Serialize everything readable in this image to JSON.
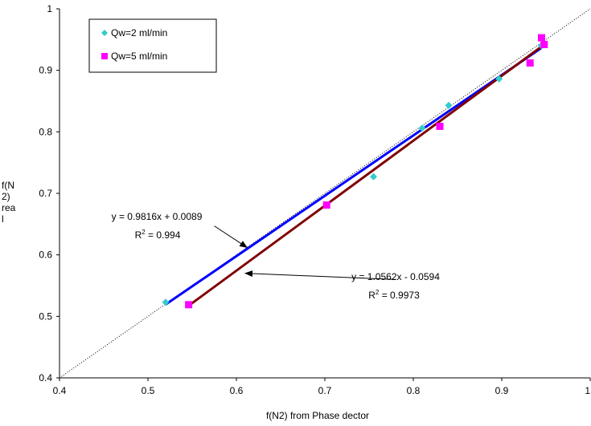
{
  "chart_data": {
    "type": "scatter",
    "xlabel": "f(N2) from Phase dector",
    "ylabel_lines": [
      "f(N",
      "2)",
      "rea",
      "l"
    ],
    "xlim": [
      0.4,
      1.0
    ],
    "ylim": [
      0.4,
      1.0
    ],
    "x_ticks": [
      0.4,
      0.5,
      0.6,
      0.7,
      0.8,
      0.9,
      1.0
    ],
    "x_tick_labels": [
      "0.4",
      "0.5",
      "0.6",
      "0.7",
      "0.8",
      "0.9",
      "1"
    ],
    "y_ticks": [
      0.4,
      0.5,
      0.6,
      0.7,
      0.8,
      0.9,
      1.0
    ],
    "y_tick_labels": [
      "0.4",
      "0.5",
      "0.6",
      "0.7",
      "0.8",
      "0.9",
      "1"
    ],
    "grid": false,
    "legend_position": "top-left",
    "diagonal": {
      "from": [
        0.4,
        0.4
      ],
      "to": [
        1.0,
        1.0
      ],
      "style": "dotted",
      "color": "#000000"
    },
    "series": [
      {
        "name": "Qw=2 ml/min",
        "marker": "diamond",
        "color": "#33CCCC",
        "points": [
          [
            0.52,
            0.523
          ],
          [
            0.755,
            0.727
          ],
          [
            0.81,
            0.806
          ],
          [
            0.84,
            0.843
          ],
          [
            0.897,
            0.886
          ],
          [
            0.945,
            0.94
          ]
        ],
        "trendline": {
          "color": "#0000FF",
          "x_range": [
            0.52,
            0.945
          ]
        }
      },
      {
        "name": "Qw=5 ml/min",
        "marker": "square",
        "color": "#FF00FF",
        "points": [
          [
            0.546,
            0.519
          ],
          [
            0.702,
            0.681
          ],
          [
            0.83,
            0.809
          ],
          [
            0.932,
            0.912
          ],
          [
            0.945,
            0.953
          ],
          [
            0.948,
            0.942
          ]
        ],
        "trendline": {
          "color": "#800000",
          "x_range": [
            0.546,
            0.948
          ]
        }
      }
    ],
    "annotations": [
      {
        "equation": "y = 0.9816x + 0.0089",
        "r2_text": "R",
        "r2_sup": "2",
        "r2_value": " = 0.994",
        "arrow_from": [
          0.575,
          0.647
        ],
        "arrow_to": [
          0.612,
          0.612
        ]
      },
      {
        "equation": "y = 1.0562x - 0.0594",
        "r2_text": "R",
        "r2_sup": "2",
        "r2_value": " = 0.9973",
        "arrow_from": [
          0.78,
          0.56
        ],
        "arrow_to": [
          0.61,
          0.57
        ]
      }
    ]
  }
}
